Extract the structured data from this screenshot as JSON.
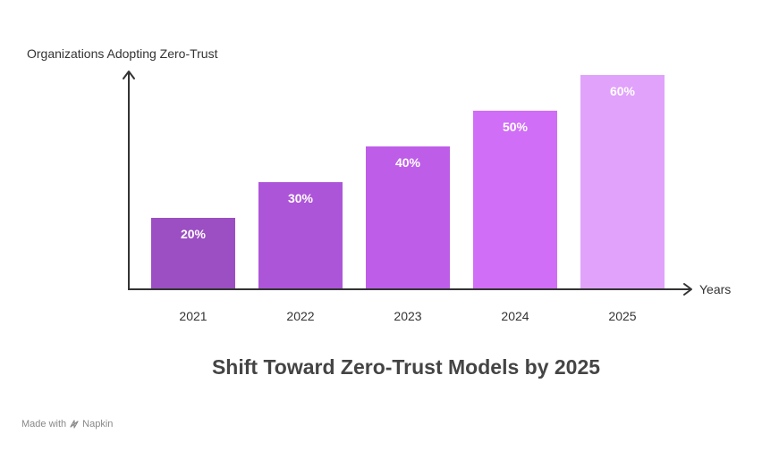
{
  "chart_data": {
    "type": "bar",
    "title": "Shift Toward Zero-Trust Models by 2025",
    "xlabel": "Years",
    "ylabel": "Organizations Adopting Zero-Trust",
    "categories": [
      "2021",
      "2022",
      "2023",
      "2024",
      "2025"
    ],
    "values": [
      20,
      30,
      40,
      50,
      60
    ],
    "value_labels": [
      "20%",
      "30%",
      "40%",
      "50%",
      "60%"
    ],
    "bar_colors": [
      "#9b4fc2",
      "#ad55d9",
      "#be5ee8",
      "#d06ef7",
      "#e0a2fa"
    ],
    "ylim": [
      0,
      60
    ],
    "grid": false,
    "legend": "none"
  },
  "footer": {
    "text": "Made with",
    "brand": "Napkin",
    "icon": "napkin-logo-icon"
  }
}
